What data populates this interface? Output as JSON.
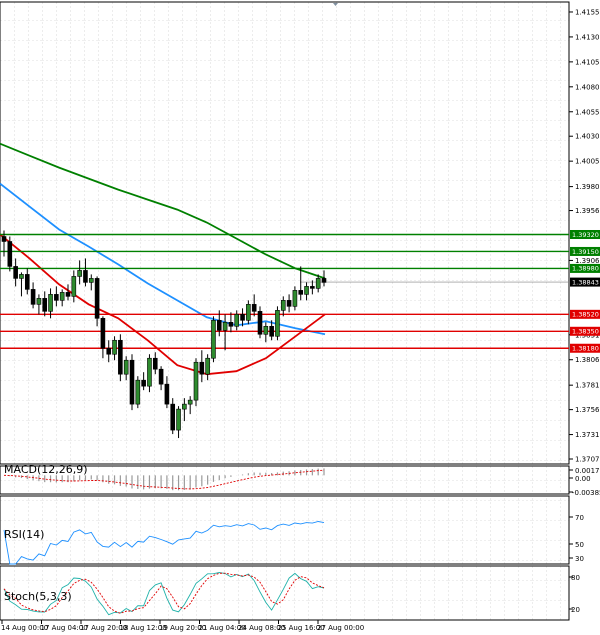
{
  "chart_data": {
    "type": "candlestick",
    "price_axis": {
      "ticks": [
        "1.41550",
        "1.41300",
        "1.41050",
        "1.40800",
        "1.40550",
        "1.40305",
        "1.40055",
        "1.39800",
        "1.39560",
        "1.39060",
        "1.38065",
        "1.37810",
        "1.37565",
        "1.37315",
        "1.37070"
      ],
      "extra_ticks": [
        "1.38315"
      ],
      "ylim": [
        1.3702,
        1.4165
      ]
    },
    "time_axis": {
      "labels": [
        "14 Aug 00:00",
        "17 Aug 04:00",
        "17 Aug 20:00",
        "18 Aug 12:00",
        "19 Aug 20:00",
        "21 Aug 04:00",
        "24 Aug 08:00",
        "25 Aug 16:00",
        "27 Aug 00:00"
      ]
    },
    "current_price": {
      "label": "1.38843",
      "value": 1.38843,
      "color": "#000000"
    },
    "levels": [
      {
        "label": "1.39320",
        "value": 1.3932,
        "color": "#008000"
      },
      {
        "label": "1.39150",
        "value": 1.3915,
        "color": "#008000"
      },
      {
        "label": "1.38980",
        "value": 1.3898,
        "color": "#008000"
      },
      {
        "label": "1.38520",
        "value": 1.3852,
        "color": "#e00000"
      },
      {
        "label": "1.38350",
        "value": 1.3835,
        "color": "#e00000"
      },
      {
        "label": "1.38180",
        "value": 1.3818,
        "color": "#e00000"
      }
    ],
    "candles": [
      {
        "o": 1.393,
        "h": 1.3936,
        "l": 1.391,
        "c": 1.3925
      },
      {
        "o": 1.3925,
        "h": 1.393,
        "l": 1.3895,
        "c": 1.39
      },
      {
        "o": 1.39,
        "h": 1.3908,
        "l": 1.388,
        "c": 1.3888
      },
      {
        "o": 1.3888,
        "h": 1.3894,
        "l": 1.387,
        "c": 1.3892
      },
      {
        "o": 1.3892,
        "h": 1.3898,
        "l": 1.3872,
        "c": 1.3877
      },
      {
        "o": 1.3877,
        "h": 1.3884,
        "l": 1.3858,
        "c": 1.3862
      },
      {
        "o": 1.3862,
        "h": 1.3872,
        "l": 1.3852,
        "c": 1.3868
      },
      {
        "o": 1.3868,
        "h": 1.3875,
        "l": 1.385,
        "c": 1.3855
      },
      {
        "o": 1.3855,
        "h": 1.3878,
        "l": 1.3848,
        "c": 1.3872
      },
      {
        "o": 1.3872,
        "h": 1.388,
        "l": 1.386,
        "c": 1.3866
      },
      {
        "o": 1.3866,
        "h": 1.3877,
        "l": 1.386,
        "c": 1.3874
      },
      {
        "o": 1.3874,
        "h": 1.3882,
        "l": 1.3866,
        "c": 1.387
      },
      {
        "o": 1.387,
        "h": 1.3896,
        "l": 1.3864,
        "c": 1.389
      },
      {
        "o": 1.389,
        "h": 1.3906,
        "l": 1.3882,
        "c": 1.3896
      },
      {
        "o": 1.3896,
        "h": 1.3908,
        "l": 1.388,
        "c": 1.3884
      },
      {
        "o": 1.3884,
        "h": 1.3892,
        "l": 1.3876,
        "c": 1.3888
      },
      {
        "o": 1.3888,
        "h": 1.389,
        "l": 1.384,
        "c": 1.3848
      },
      {
        "o": 1.3848,
        "h": 1.385,
        "l": 1.3808,
        "c": 1.3818
      },
      {
        "o": 1.3818,
        "h": 1.3826,
        "l": 1.3804,
        "c": 1.3812
      },
      {
        "o": 1.3812,
        "h": 1.383,
        "l": 1.3806,
        "c": 1.3826
      },
      {
        "o": 1.3826,
        "h": 1.3832,
        "l": 1.3785,
        "c": 1.3792
      },
      {
        "o": 1.3792,
        "h": 1.381,
        "l": 1.3786,
        "c": 1.3806
      },
      {
        "o": 1.3806,
        "h": 1.3812,
        "l": 1.3756,
        "c": 1.3762
      },
      {
        "o": 1.3762,
        "h": 1.379,
        "l": 1.3758,
        "c": 1.3786
      },
      {
        "o": 1.3786,
        "h": 1.3794,
        "l": 1.3776,
        "c": 1.378
      },
      {
        "o": 1.378,
        "h": 1.3812,
        "l": 1.3774,
        "c": 1.3808
      },
      {
        "o": 1.3808,
        "h": 1.3814,
        "l": 1.3792,
        "c": 1.3797
      },
      {
        "o": 1.3797,
        "h": 1.38,
        "l": 1.3776,
        "c": 1.3782
      },
      {
        "o": 1.3782,
        "h": 1.379,
        "l": 1.3758,
        "c": 1.3762
      },
      {
        "o": 1.3762,
        "h": 1.3768,
        "l": 1.3732,
        "c": 1.3736
      },
      {
        "o": 1.3736,
        "h": 1.376,
        "l": 1.3728,
        "c": 1.3757
      },
      {
        "o": 1.3757,
        "h": 1.3768,
        "l": 1.3745,
        "c": 1.3762
      },
      {
        "o": 1.3762,
        "h": 1.377,
        "l": 1.3752,
        "c": 1.3766
      },
      {
        "o": 1.3766,
        "h": 1.3808,
        "l": 1.376,
        "c": 1.3804
      },
      {
        "o": 1.3804,
        "h": 1.3816,
        "l": 1.3784,
        "c": 1.3792
      },
      {
        "o": 1.3792,
        "h": 1.3812,
        "l": 1.3786,
        "c": 1.3808
      },
      {
        "o": 1.3808,
        "h": 1.385,
        "l": 1.3804,
        "c": 1.3846
      },
      {
        "o": 1.3846,
        "h": 1.3856,
        "l": 1.383,
        "c": 1.3836
      },
      {
        "o": 1.3836,
        "h": 1.3852,
        "l": 1.3816,
        "c": 1.3844
      },
      {
        "o": 1.3844,
        "h": 1.3854,
        "l": 1.3834,
        "c": 1.384
      },
      {
        "o": 1.384,
        "h": 1.3856,
        "l": 1.3836,
        "c": 1.3852
      },
      {
        "o": 1.3852,
        "h": 1.3858,
        "l": 1.384,
        "c": 1.3846
      },
      {
        "o": 1.3846,
        "h": 1.3866,
        "l": 1.3842,
        "c": 1.3862
      },
      {
        "o": 1.3862,
        "h": 1.3872,
        "l": 1.385,
        "c": 1.3855
      },
      {
        "o": 1.3855,
        "h": 1.386,
        "l": 1.3828,
        "c": 1.3832
      },
      {
        "o": 1.3832,
        "h": 1.3844,
        "l": 1.3824,
        "c": 1.384
      },
      {
        "o": 1.384,
        "h": 1.3846,
        "l": 1.3826,
        "c": 1.383
      },
      {
        "o": 1.383,
        "h": 1.386,
        "l": 1.3826,
        "c": 1.3856
      },
      {
        "o": 1.3856,
        "h": 1.387,
        "l": 1.385,
        "c": 1.3866
      },
      {
        "o": 1.3866,
        "h": 1.3872,
        "l": 1.3854,
        "c": 1.386
      },
      {
        "o": 1.386,
        "h": 1.388,
        "l": 1.3856,
        "c": 1.3876
      },
      {
        "o": 1.3876,
        "h": 1.39,
        "l": 1.3866,
        "c": 1.3872
      },
      {
        "o": 1.3872,
        "h": 1.3884,
        "l": 1.3866,
        "c": 1.388
      },
      {
        "o": 1.388,
        "h": 1.3886,
        "l": 1.3872,
        "c": 1.3878
      },
      {
        "o": 1.3878,
        "h": 1.3892,
        "l": 1.3874,
        "c": 1.3888
      },
      {
        "o": 1.3888,
        "h": 1.3896,
        "l": 1.388,
        "c": 1.3884
      }
    ],
    "moving_averages": [
      {
        "color": "#008000",
        "values": [
          1.4023,
          1.4011,
          1.3999,
          1.3988,
          1.3977,
          1.3967,
          1.3957,
          1.3944,
          1.3928,
          1.3912,
          1.3898,
          1.3888
        ]
      },
      {
        "color": "#1e90ff",
        "values": [
          1.3983,
          1.396,
          1.3937,
          1.392,
          1.3902,
          1.3883,
          1.3866,
          1.3849,
          1.3841,
          1.3845,
          1.3838,
          1.3832
        ]
      },
      {
        "color": "#e00000",
        "values": [
          1.3932,
          1.3908,
          1.3882,
          1.3862,
          1.3848,
          1.3826,
          1.3801,
          1.3792,
          1.3795,
          1.3808,
          1.383,
          1.3852
        ]
      }
    ],
    "indicators": [
      {
        "name": "MACD(12,26,9)",
        "ticks": [
          "0.001768",
          "0.00",
          "-0.003855"
        ],
        "ylim": [
          -0.0042,
          0.0021
        ]
      },
      {
        "name": "RSI(14)",
        "ticks": [
          "70",
          "50",
          "30"
        ],
        "ylim": [
          0,
          100
        ]
      },
      {
        "name": "Stoch(5,3,3)",
        "ticks": [
          "80",
          "20"
        ],
        "ylim": [
          0,
          100
        ]
      }
    ]
  }
}
